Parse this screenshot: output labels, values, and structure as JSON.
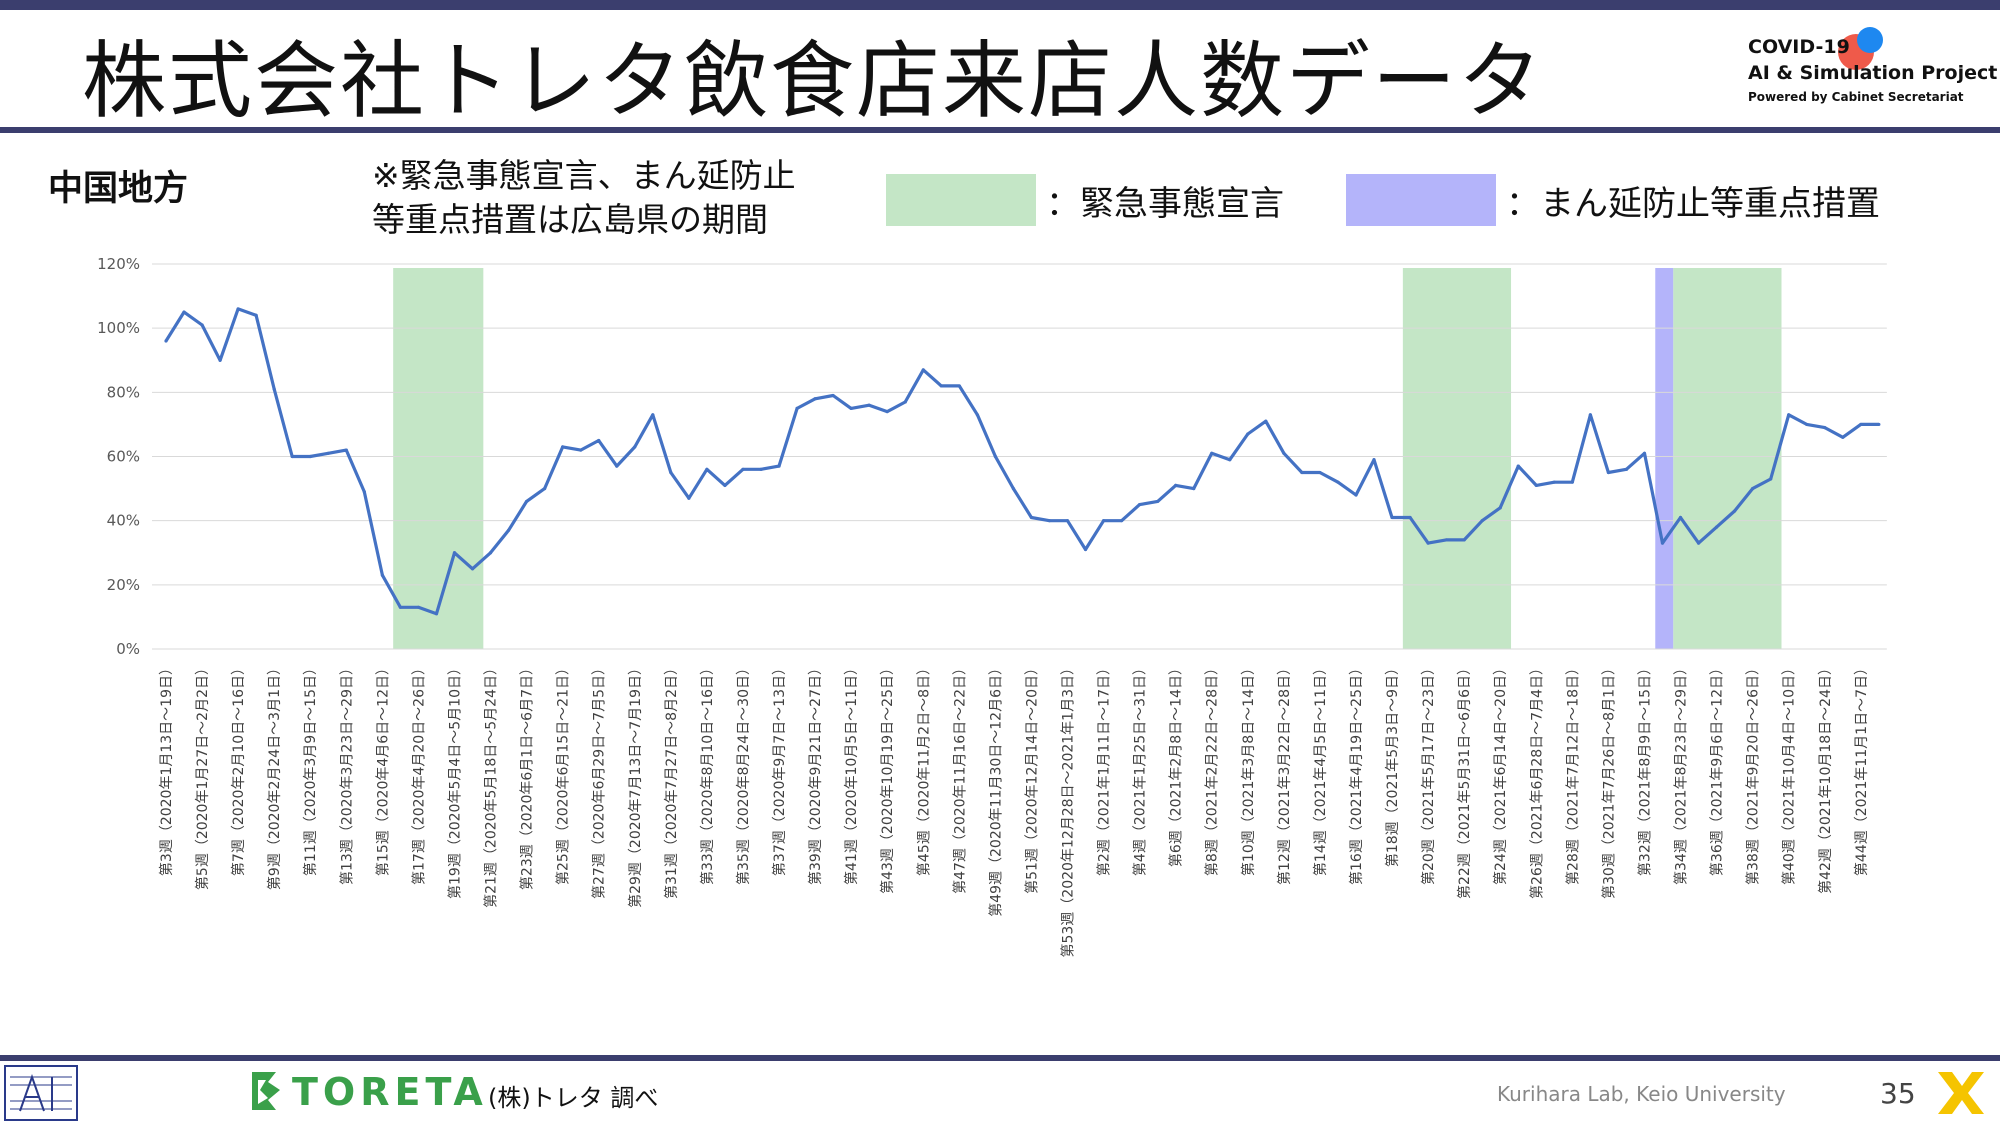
{
  "header": {
    "title": "株式会社トレタ飲食店来店人数データ",
    "covid_line1": "COVID-19",
    "covid_line2": "AI & Simulation Project",
    "covid_line3": "Powered by Cabinet Secretariat"
  },
  "region_label": "中国地方",
  "note_line1": "※緊急事態宣言、まん延防止",
  "note_line2": "等重点措置は広島県の期間",
  "legend": [
    {
      "label": "：緊急事態宣言",
      "color": "#c4e6c6"
    },
    {
      "label": "：まん延防止等重点措置",
      "color": "#b4b4fa"
    }
  ],
  "footer": {
    "brand": "TORETA",
    "source": "(株)トレタ 調べ",
    "credit": "Kurihara Lab, Keio University",
    "page_number": "35"
  },
  "chart_data": {
    "type": "line",
    "ylim": [
      0,
      120
    ],
    "yticks": [
      "0%",
      "20%",
      "40%",
      "60%",
      "80%",
      "100%",
      "120%"
    ],
    "grid": true,
    "line_color": "#4472c4",
    "x_labels": [
      "第3週（2020年1月13日〜19日）",
      "第5週（2020年1月27日〜2月2日）",
      "第7週（2020年2月10日〜16日）",
      "第9週（2020年2月24日〜3月1日）",
      "第11週（2020年3月9日〜15日）",
      "第13週（2020年3月23日〜29日）",
      "第15週（2020年4月6日〜12日）",
      "第17週（2020年4月20日〜26日）",
      "第19週（2020年5月4日〜5月10日）",
      "第21週（2020年5月18日〜5月24日）",
      "第23週（2020年6月1日〜6月7日）",
      "第25週（2020年6月15日〜21日）",
      "第27週（2020年6月29日〜7月5日）",
      "第29週（2020年7月13日〜7月19日）",
      "第31週（2020年7月27日〜8月2日）",
      "第33週（2020年8月10日〜16日）",
      "第35週（2020年8月24日〜30日）",
      "第37週（2020年9月7日〜13日）",
      "第39週（2020年9月21日〜27日）",
      "第41週（2020年10月5日〜11日）",
      "第43週（2020年10月19日〜25日）",
      "第45週（2020年11月2日〜8日）",
      "第47週（2020年11月16日〜22日）",
      "第49週（2020年11月30日〜12月6日）",
      "第51週（2020年12月14日〜20日）",
      "第53週（2020年12月28日〜2021年1月3日）",
      "第2週（2021年1月11日〜17日）",
      "第4週（2021年1月25日〜31日）",
      "第6週（2021年2月8日〜14日）",
      "第8週（2021年2月22日〜28日）",
      "第10週（2021年3月8日〜14日）",
      "第12週（2021年3月22日〜28日）",
      "第14週（2021年4月5日〜11日）",
      "第16週（2021年4月19日〜25日）",
      "第18週（2021年5月3日〜9日）",
      "第20週（2021年5月17日〜23日）",
      "第22週（2021年5月31日〜6月6日）",
      "第24週（2021年6月14日〜20日）",
      "第26週（2021年6月28日〜7月4日）",
      "第28週（2021年7月12日〜18日）",
      "第30週（2021年7月26日〜8月1日）",
      "第32週（2021年8月9日〜15日）",
      "第34週（2021年8月23日〜29日）",
      "第36週（2021年9月6日〜12日）",
      "第38週（2021年9月20日〜26日）",
      "第40週（2021年10月4日〜10日）",
      "第42週（2021年10月18日〜24日）",
      "第44週（2021年11月1日〜7日）"
    ],
    "values": [
      96,
      105,
      101,
      90,
      106,
      104,
      81,
      60,
      60,
      61,
      62,
      49,
      23,
      13,
      13,
      11,
      30,
      25,
      30,
      37,
      46,
      50,
      63,
      62,
      65,
      57,
      63,
      73,
      55,
      47,
      56,
      51,
      56,
      56,
      57,
      75,
      78,
      79,
      75,
      76,
      74,
      77,
      87,
      82,
      82,
      73,
      60,
      50,
      41,
      40,
      40,
      31,
      40,
      40,
      45,
      46,
      51,
      50,
      61,
      59,
      67,
      71,
      61,
      55,
      55,
      52,
      48,
      59,
      41,
      41,
      33,
      34,
      34,
      40,
      44,
      57,
      51,
      52,
      52,
      73,
      55,
      56,
      61,
      33,
      41,
      33,
      38,
      43,
      50,
      53,
      73,
      70,
      69,
      66,
      70,
      70
    ],
    "shaded_periods": [
      {
        "type": "緊急事態宣言",
        "start_index": 12.6,
        "end_index": 17.6
      },
      {
        "type": "緊急事態宣言",
        "start_index": 68.6,
        "end_index": 74.6
      },
      {
        "type": "まん延防止等重点措置",
        "start_index": 82.6,
        "end_index": 83.6
      },
      {
        "type": "緊急事態宣言",
        "start_index": 83.6,
        "end_index": 89.6
      }
    ]
  }
}
